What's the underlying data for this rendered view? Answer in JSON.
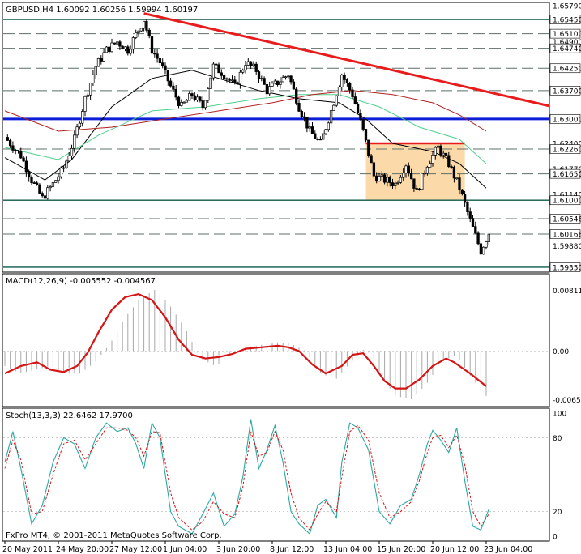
{
  "colors": {
    "background": "#ffffff",
    "frame": "#000000",
    "bull_candle": "#ffffff",
    "bear_candle": "#000000",
    "candle_wick": "#000000",
    "resistance_line": "#e81c1c",
    "support_line": "#0b1fd6",
    "hline_green": "#0d5a4a",
    "grid_dash": "#5f6f66",
    "ma_fast": "#000000",
    "ma_mid": "#4ecf8c",
    "ma_slow": "#b22020",
    "box_fill": "#fcd9a8",
    "box_top": "#e81c1c",
    "macd_hist": "#a8a8a8",
    "macd_signal": "#d61414",
    "stoch_main": "#2aa9a4",
    "stoch_signal": "#d61414",
    "price_tag_bg": "#ffffff"
  },
  "chart_data": [
    {
      "type": "candlestick",
      "title": "GBPUSD,H4  1.60092 1.60256 1.59994 1.60197",
      "symbol": "GBPUSD",
      "timeframe": "H4",
      "ohlc_last": {
        "open": 1.60092,
        "high": 1.60256,
        "low": 1.59994,
        "close": 1.60197
      },
      "ylim": [
        1.5925,
        1.6585
      ],
      "price_labels": [
        "1.65790",
        "1.65450",
        "1.65100",
        "1.64900",
        "1.64740",
        "1.64250",
        "1.63700",
        "1.63000",
        "1.62400",
        "1.62260",
        "1.61770",
        "1.61650",
        "1.61140",
        "1.61000",
        "1.60546",
        "1.60166",
        "1.59880",
        "1.59350"
      ],
      "horizontal_levels": [
        {
          "price": 1.6545,
          "label": "1.65450",
          "style": "solid-green"
        },
        {
          "price": 1.651,
          "label": "1.65100",
          "style": "dash"
        },
        {
          "price": 1.6474,
          "label": "1.64740",
          "style": "dash"
        },
        {
          "price": 1.6425,
          "label": "1.64250",
          "style": "dash"
        },
        {
          "price": 1.637,
          "label": "1.63700",
          "style": "dash"
        },
        {
          "price": 1.63,
          "label": "1.63000",
          "style": "support-blue"
        },
        {
          "price": 1.6226,
          "label": "1.62260",
          "style": "dash"
        },
        {
          "price": 1.6165,
          "label": "1.61650",
          "style": "dash"
        },
        {
          "price": 1.61,
          "label": "1.61000",
          "style": "solid-green"
        },
        {
          "price": 1.60546,
          "label": "1.60546",
          "style": "dash"
        },
        {
          "price": 1.60166,
          "label": "1.60166",
          "style": "dash"
        },
        {
          "price": 1.5935,
          "label": "1.59350",
          "style": "solid-green"
        }
      ],
      "trendline": {
        "name": "resistance",
        "from": {
          "bar": 52,
          "price": 1.656
        },
        "to": {
          "bar": 205,
          "price": 1.633
        }
      },
      "box": {
        "bar_start": 135,
        "bar_end": 172,
        "price_top": 1.624,
        "price_bottom": 1.61
      },
      "close_path": [
        [
          0,
          1.6255
        ],
        [
          6,
          1.621
        ],
        [
          10,
          1.615
        ],
        [
          14,
          1.6105
        ],
        [
          18,
          1.614
        ],
        [
          22,
          1.618
        ],
        [
          26,
          1.625
        ],
        [
          30,
          1.635
        ],
        [
          34,
          1.643
        ],
        [
          38,
          1.647
        ],
        [
          42,
          1.649
        ],
        [
          46,
          1.647
        ],
        [
          50,
          1.652
        ],
        [
          52,
          1.6545
        ],
        [
          55,
          1.647
        ],
        [
          58,
          1.644
        ],
        [
          62,
          1.638
        ],
        [
          66,
          1.633
        ],
        [
          70,
          1.636
        ],
        [
          74,
          1.633
        ],
        [
          78,
          1.643
        ],
        [
          82,
          1.641
        ],
        [
          86,
          1.638
        ],
        [
          90,
          1.644
        ],
        [
          94,
          1.642
        ],
        [
          98,
          1.637
        ],
        [
          102,
          1.639
        ],
        [
          106,
          1.641
        ],
        [
          110,
          1.633
        ],
        [
          114,
          1.627
        ],
        [
          118,
          1.624
        ],
        [
          122,
          1.632
        ],
        [
          126,
          1.641
        ],
        [
          130,
          1.636
        ],
        [
          134,
          1.627
        ],
        [
          138,
          1.616
        ],
        [
          142,
          1.615
        ],
        [
          146,
          1.614
        ],
        [
          150,
          1.619
        ],
        [
          154,
          1.612
        ],
        [
          158,
          1.619
        ],
        [
          162,
          1.623
        ],
        [
          166,
          1.619
        ],
        [
          170,
          1.613
        ],
        [
          174,
          1.605
        ],
        [
          178,
          1.5975
        ],
        [
          181,
          1.602
        ]
      ],
      "moving_averages": [
        {
          "color_key": "ma_fast",
          "points": [
            [
              0,
              1.6205
            ],
            [
              15,
              1.615
            ],
            [
              25,
              1.62
            ],
            [
              40,
              1.633
            ],
            [
              55,
              1.64
            ],
            [
              70,
              1.642
            ],
            [
              80,
              1.64
            ],
            [
              95,
              1.637
            ],
            [
              110,
              1.635
            ],
            [
              125,
              1.634
            ],
            [
              135,
              1.63
            ],
            [
              145,
              1.624
            ],
            [
              160,
              1.622
            ],
            [
              170,
              1.619
            ],
            [
              180,
              1.613
            ]
          ]
        },
        {
          "color_key": "ma_mid",
          "points": [
            [
              0,
              1.623
            ],
            [
              20,
              1.62
            ],
            [
              35,
              1.626
            ],
            [
              55,
              1.632
            ],
            [
              75,
              1.633
            ],
            [
              95,
              1.635
            ],
            [
              110,
              1.636
            ],
            [
              125,
              1.636
            ],
            [
              140,
              1.633
            ],
            [
              155,
              1.628
            ],
            [
              170,
              1.625
            ],
            [
              180,
              1.619
            ]
          ]
        },
        {
          "color_key": "ma_slow",
          "points": [
            [
              0,
              1.632
            ],
            [
              20,
              1.627
            ],
            [
              40,
              1.628
            ],
            [
              60,
              1.63
            ],
            [
              80,
              1.632
            ],
            [
              100,
              1.634
            ],
            [
              115,
              1.636
            ],
            [
              130,
              1.637
            ],
            [
              145,
              1.636
            ],
            [
              160,
              1.634
            ],
            [
              170,
              1.631
            ],
            [
              180,
              1.627
            ]
          ]
        }
      ]
    },
    {
      "type": "macd",
      "title": "MACD(12,26,9) -0.005552 -0.004567",
      "params": "12,26,9",
      "macd_value": -0.005552,
      "signal_value": -0.004567,
      "ylim": [
        -0.0072,
        0.0088
      ],
      "tick_labels": [
        "0.008110",
        "0.00",
        "-0.006513"
      ],
      "signal_points": [
        [
          0,
          -0.003
        ],
        [
          6,
          -0.002
        ],
        [
          12,
          -0.0015
        ],
        [
          17,
          -0.0025
        ],
        [
          22,
          -0.0028
        ],
        [
          27,
          -0.002
        ],
        [
          31,
          -0.0002
        ],
        [
          35,
          0.0025
        ],
        [
          40,
          0.0055
        ],
        [
          45,
          0.0072
        ],
        [
          50,
          0.0076
        ],
        [
          55,
          0.0068
        ],
        [
          60,
          0.0045
        ],
        [
          65,
          0.0015
        ],
        [
          70,
          -0.0005
        ],
        [
          75,
          -0.001
        ],
        [
          80,
          -0.0008
        ],
        [
          85,
          -0.0004
        ],
        [
          90,
          0.0003
        ],
        [
          96,
          0.0005
        ],
        [
          102,
          0.0007
        ],
        [
          106,
          0.0005
        ],
        [
          110,
          0.0
        ],
        [
          115,
          -0.0018
        ],
        [
          120,
          -0.003
        ],
        [
          126,
          -0.002
        ],
        [
          130,
          -0.0005
        ],
        [
          134,
          -0.0003
        ],
        [
          138,
          -0.002
        ],
        [
          142,
          -0.004
        ],
        [
          146,
          -0.005
        ],
        [
          150,
          -0.005
        ],
        [
          155,
          -0.0038
        ],
        [
          160,
          -0.002
        ],
        [
          165,
          -0.001
        ],
        [
          168,
          -0.0015
        ],
        [
          174,
          -0.003
        ],
        [
          180,
          -0.0047
        ]
      ],
      "histogram_values": [
        -0.002,
        -0.003,
        -0.0025,
        -0.002,
        -0.003,
        -0.003,
        -0.0015,
        0.001,
        0.0045,
        0.007,
        0.0082,
        0.006,
        0.003,
        -0.001,
        -0.002,
        -0.0005,
        0.0005,
        0.0008,
        0.0012,
        0.001,
        0.0,
        -0.003,
        -0.0038,
        -0.0015,
        0.0005,
        -0.0035,
        -0.006,
        -0.0065,
        -0.0045,
        -0.0015,
        -0.0005,
        -0.0035,
        -0.006
      ]
    },
    {
      "type": "stochastic",
      "title": "Stoch(13,3,3) 22.6462 17.9700",
      "params": "13,3,3",
      "main_value": 22.6462,
      "signal_value": 17.97,
      "ylim": [
        0,
        100
      ],
      "tick_labels": [
        "100",
        "80",
        "20",
        "0"
      ],
      "levels": [
        80,
        20
      ],
      "main_points": [
        [
          0,
          60
        ],
        [
          3,
          85
        ],
        [
          6,
          55
        ],
        [
          10,
          10
        ],
        [
          14,
          25
        ],
        [
          18,
          60
        ],
        [
          22,
          80
        ],
        [
          26,
          75
        ],
        [
          30,
          55
        ],
        [
          34,
          80
        ],
        [
          38,
          92
        ],
        [
          42,
          85
        ],
        [
          46,
          88
        ],
        [
          49,
          75
        ],
        [
          52,
          55
        ],
        [
          55,
          92
        ],
        [
          58,
          80
        ],
        [
          62,
          20
        ],
        [
          65,
          8
        ],
        [
          70,
          2
        ],
        [
          74,
          18
        ],
        [
          78,
          35
        ],
        [
          82,
          8
        ],
        [
          86,
          18
        ],
        [
          89,
          48
        ],
        [
          92,
          95
        ],
        [
          95,
          55
        ],
        [
          98,
          70
        ],
        [
          101,
          90
        ],
        [
          104,
          60
        ],
        [
          107,
          20
        ],
        [
          110,
          10
        ],
        [
          114,
          2
        ],
        [
          117,
          25
        ],
        [
          120,
          30
        ],
        [
          124,
          15
        ],
        [
          126,
          60
        ],
        [
          129,
          92
        ],
        [
          132,
          88
        ],
        [
          136,
          70
        ],
        [
          140,
          20
        ],
        [
          144,
          10
        ],
        [
          148,
          25
        ],
        [
          152,
          30
        ],
        [
          155,
          50
        ],
        [
          158,
          75
        ],
        [
          160,
          86
        ],
        [
          163,
          78
        ],
        [
          166,
          68
        ],
        [
          169,
          88
        ],
        [
          172,
          45
        ],
        [
          175,
          8
        ],
        [
          178,
          5
        ],
        [
          181,
          22
        ]
      ],
      "signal_points": [
        [
          0,
          55
        ],
        [
          3,
          78
        ],
        [
          6,
          62
        ],
        [
          10,
          18
        ],
        [
          14,
          20
        ],
        [
          18,
          50
        ],
        [
          22,
          75
        ],
        [
          26,
          78
        ],
        [
          30,
          62
        ],
        [
          34,
          75
        ],
        [
          38,
          88
        ],
        [
          42,
          88
        ],
        [
          46,
          86
        ],
        [
          49,
          80
        ],
        [
          52,
          65
        ],
        [
          55,
          85
        ],
        [
          58,
          84
        ],
        [
          62,
          35
        ],
        [
          65,
          15
        ],
        [
          70,
          5
        ],
        [
          74,
          12
        ],
        [
          78,
          28
        ],
        [
          82,
          18
        ],
        [
          86,
          15
        ],
        [
          89,
          40
        ],
        [
          92,
          85
        ],
        [
          95,
          65
        ],
        [
          98,
          68
        ],
        [
          101,
          85
        ],
        [
          104,
          70
        ],
        [
          107,
          35
        ],
        [
          110,
          15
        ],
        [
          114,
          5
        ],
        [
          117,
          18
        ],
        [
          120,
          28
        ],
        [
          124,
          20
        ],
        [
          126,
          48
        ],
        [
          129,
          85
        ],
        [
          132,
          90
        ],
        [
          136,
          78
        ],
        [
          140,
          35
        ],
        [
          144,
          15
        ],
        [
          148,
          20
        ],
        [
          152,
          28
        ],
        [
          155,
          45
        ],
        [
          158,
          68
        ],
        [
          160,
          80
        ],
        [
          163,
          82
        ],
        [
          166,
          72
        ],
        [
          169,
          82
        ],
        [
          172,
          58
        ],
        [
          175,
          20
        ],
        [
          178,
          8
        ],
        [
          181,
          18
        ]
      ]
    }
  ],
  "x_axis": {
    "labels": [
      "20 May 2011",
      "24 May 20:00",
      "27 May 12:00",
      "1 Jun 04:00",
      "3 Jun 20:00",
      "8 Jun 12:00",
      "13 Jun 04:00",
      "15 Jun 20:00",
      "20 Jun 12:00",
      "23 Jun 04:00"
    ],
    "label_bars": [
      0,
      20,
      40,
      60,
      80,
      100,
      120,
      140,
      160,
      180
    ]
  },
  "footer": {
    "copyright": "FxPro MT4, © 2001-2011 MetaQuotes Software Corp."
  }
}
